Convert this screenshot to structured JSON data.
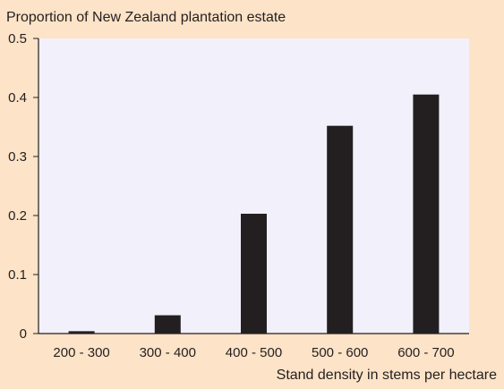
{
  "chart_data": {
    "type": "bar",
    "title": "",
    "ylabel": "Proportion of New Zealand plantation estate",
    "xlabel": "Stand density in stems per hectare",
    "categories": [
      "200 - 300",
      "300 - 400",
      "400 - 500",
      "500 - 600",
      "600 - 700"
    ],
    "values": [
      0.004,
      0.031,
      0.203,
      0.352,
      0.405
    ],
    "ylim": [
      0,
      0.5
    ],
    "yticks": [
      "0",
      "0.1",
      "0.2",
      "0.3",
      "0.4",
      "0.5"
    ],
    "grid": false,
    "legend": "none",
    "colors": {
      "bar": "#231f20",
      "plot_background": "#f2f1fb",
      "page_background": "#fde3c7",
      "axis": "#231f20"
    }
  }
}
